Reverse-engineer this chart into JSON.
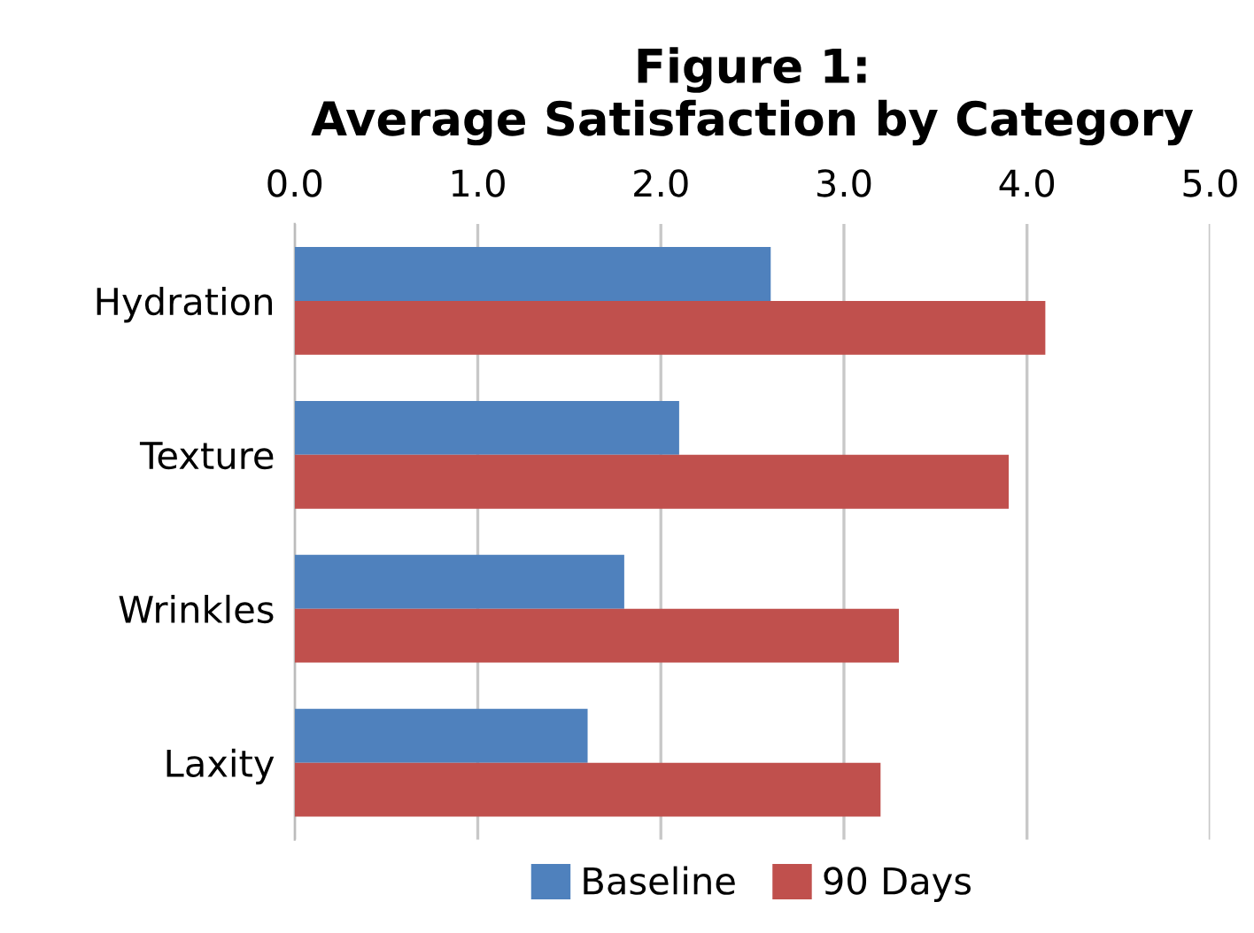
{
  "chart_data": {
    "type": "bar",
    "orientation": "horizontal",
    "title": "Figure 1:\nAverage Satisfaction by Category",
    "categories": [
      "Hydration",
      "Texture",
      "Wrinkles",
      "Laxity"
    ],
    "series": [
      {
        "name": "Baseline",
        "color": "#4f81bd",
        "values": [
          2.6,
          2.1,
          1.8,
          1.6
        ]
      },
      {
        "name": "90 Days",
        "color": "#c0504d",
        "values": [
          4.1,
          3.9,
          3.3,
          3.2
        ]
      }
    ],
    "xlim": [
      0,
      5
    ],
    "xticks": [
      {
        "value": 0,
        "label": "0.0"
      },
      {
        "value": 1,
        "label": "1.0"
      },
      {
        "value": 2,
        "label": "2.0"
      },
      {
        "value": 3,
        "label": "3.0"
      },
      {
        "value": 4,
        "label": "4.0"
      },
      {
        "value": 5,
        "label": "5.0"
      }
    ],
    "grid": "x",
    "legend": "bottom"
  }
}
